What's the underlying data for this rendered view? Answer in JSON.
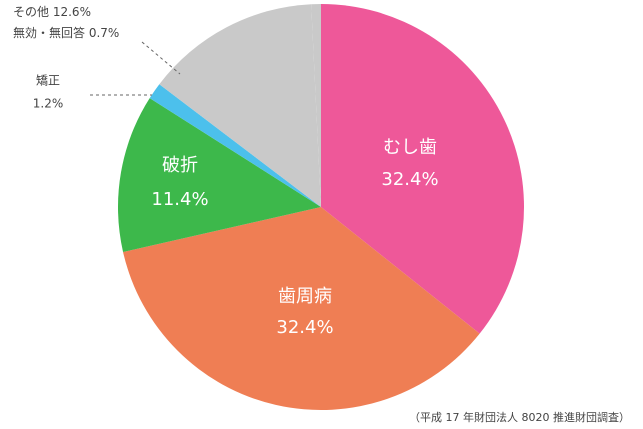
{
  "chart_data": {
    "type": "pie",
    "categories": [
      "むし歯",
      "歯周病",
      "破折",
      "矯正",
      "その他",
      "無効・無回答"
    ],
    "values": [
      32.4,
      32.4,
      11.4,
      1.2,
      12.6,
      0.7
    ],
    "value_labels": [
      "32.4%",
      "32.4%",
      "11.4%",
      "1.2%",
      "12.6%",
      "0.7%"
    ],
    "colors": [
      "#ee5899",
      "#ef7e54",
      "#3db84b",
      "#4cc0ec",
      "#c9c9c9",
      "#c9c9c9"
    ],
    "note": "（平成 17 年財団法人 8020 推進財団調査）"
  }
}
